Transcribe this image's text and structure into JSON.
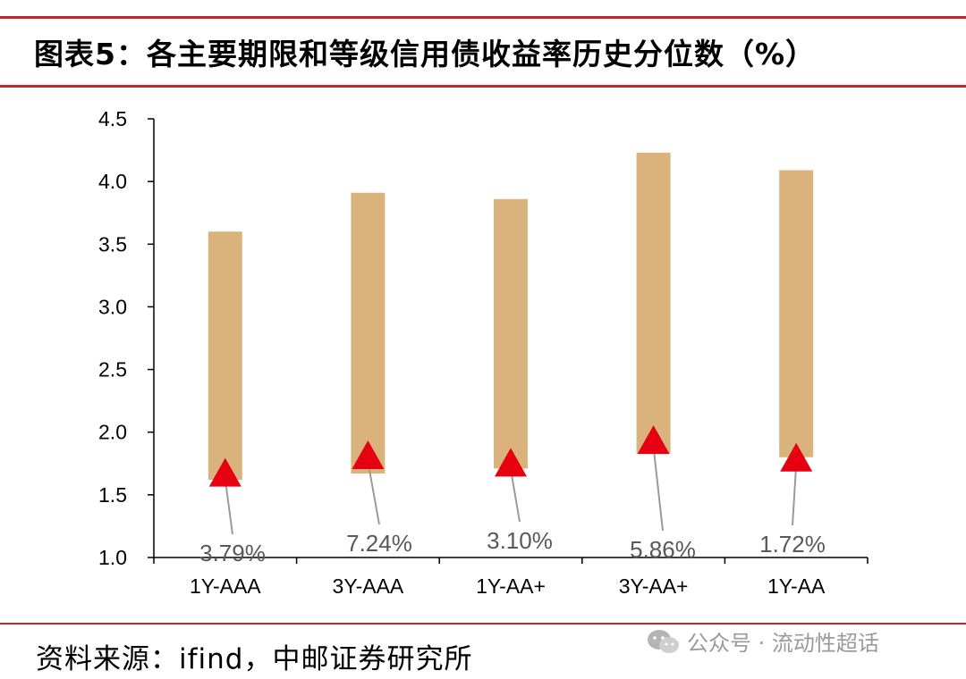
{
  "header": {
    "title": "图表5：各主要期限和等级信用债收益率历史分位数（%）"
  },
  "footer": {
    "source": "资料来源：ifind，中邮证券研究所",
    "watermark": "公众号 · 流动性超话"
  },
  "colors": {
    "rule": "#c1272d",
    "bar": "#d9b27c",
    "marker": "#e60012",
    "axis": "#000000",
    "leader": "#9a9a9a",
    "annotation": "#595959"
  },
  "chart_data": {
    "type": "bar",
    "subtype": "floating-range-with-marker",
    "categories": [
      "1Y-AAA",
      "3Y-AAA",
      "1Y-AA+",
      "3Y-AA+",
      "1Y-AA"
    ],
    "series": [
      {
        "values": [
          [
            1.62,
            3.6
          ],
          [
            1.67,
            3.91
          ],
          [
            1.71,
            3.86
          ],
          [
            1.83,
            4.23
          ],
          [
            1.8,
            4.09
          ]
        ]
      },
      {
        "values": [
          1.68,
          1.82,
          1.76,
          1.94,
          1.8
        ]
      }
    ],
    "annotations": [
      "3.79%",
      "7.24%",
      "3.10%",
      "5.86%",
      "1.72%"
    ],
    "y_ticks": [
      "1.0",
      "1.5",
      "2.0",
      "2.5",
      "3.0",
      "3.5",
      "4.0",
      "4.5"
    ],
    "ylim": [
      1.0,
      4.5
    ],
    "xlabel": "",
    "ylabel": "",
    "legend": "none",
    "grid": false
  }
}
